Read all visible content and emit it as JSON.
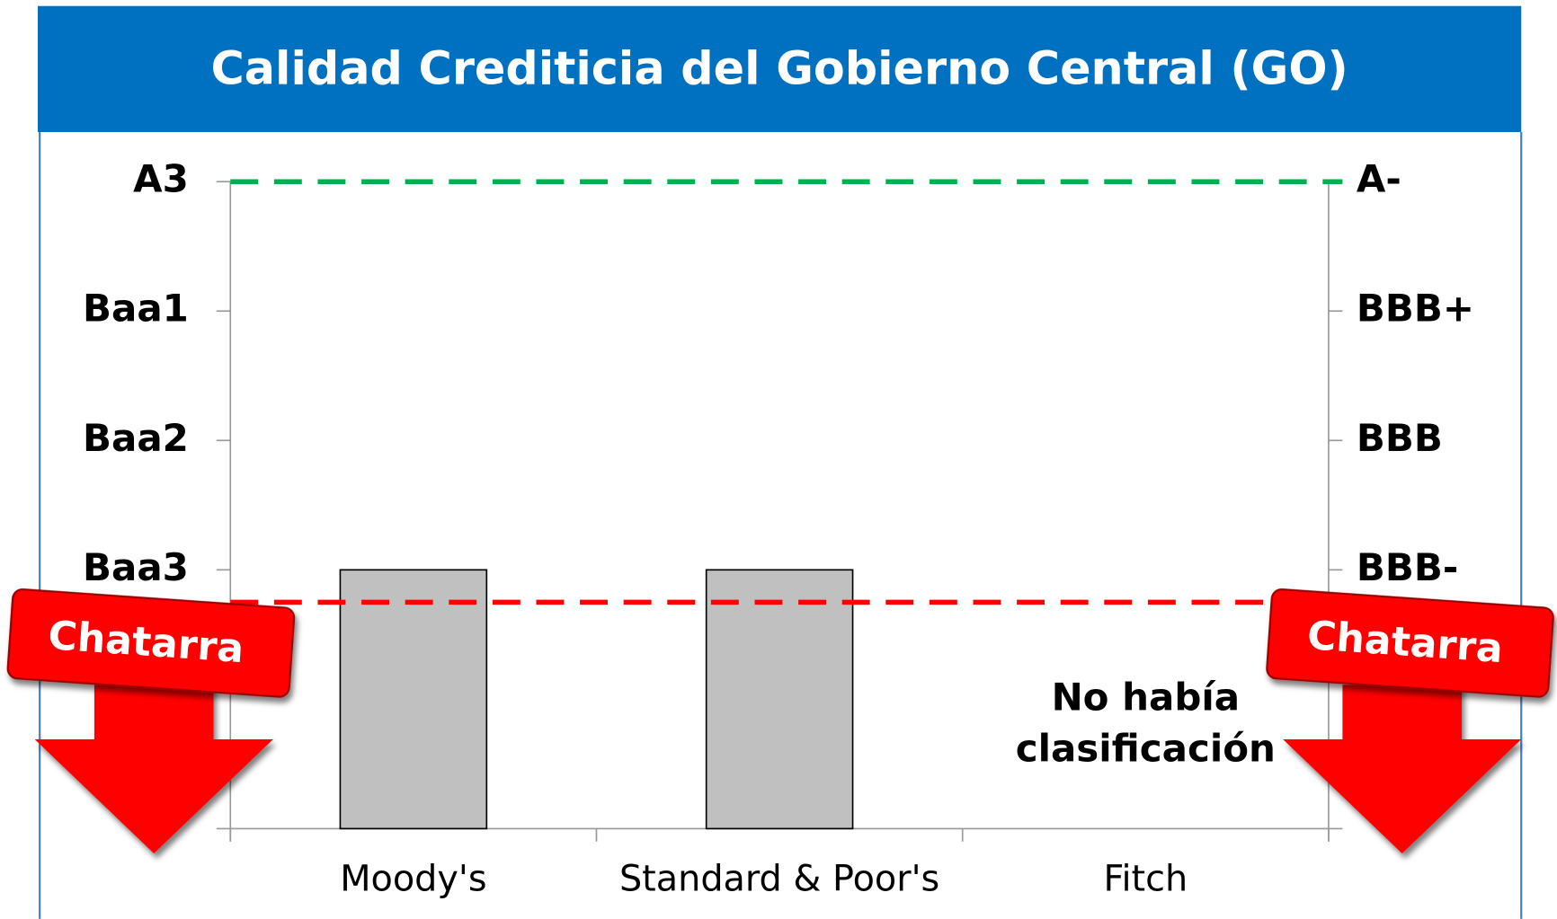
{
  "chart_data": {
    "type": "bar",
    "title": "Calidad Crediticia del Gobierno Central (GO)",
    "categories": [
      "Moody's",
      "Standard & Poor's",
      "Fitch"
    ],
    "values": [
      2,
      2,
      null
    ],
    "color": "#c0c0c0",
    "ylim": [
      0,
      5
    ],
    "yticks": [
      {
        "value": 2,
        "label": "Baa3"
      },
      {
        "value": 3,
        "label": "Baa2"
      },
      {
        "value": 4,
        "label": "Baa1"
      },
      {
        "value": 5,
        "label": "A3"
      }
    ],
    "y2lim": [
      0,
      5
    ],
    "y2ticks": [
      {
        "value": 2,
        "label": "BBB-"
      },
      {
        "value": 3,
        "label": "BBB"
      },
      {
        "value": 4,
        "label": "BBB+"
      },
      {
        "value": 5,
        "label": "A-"
      }
    ],
    "reference_lines": [
      {
        "value": 5,
        "color": "#00b050"
      },
      {
        "value": 1.75,
        "color": "#ff0000"
      }
    ],
    "banners": [
      "Chatarra",
      "Chatarra"
    ],
    "note": [
      "No había",
      "clasificación"
    ]
  }
}
